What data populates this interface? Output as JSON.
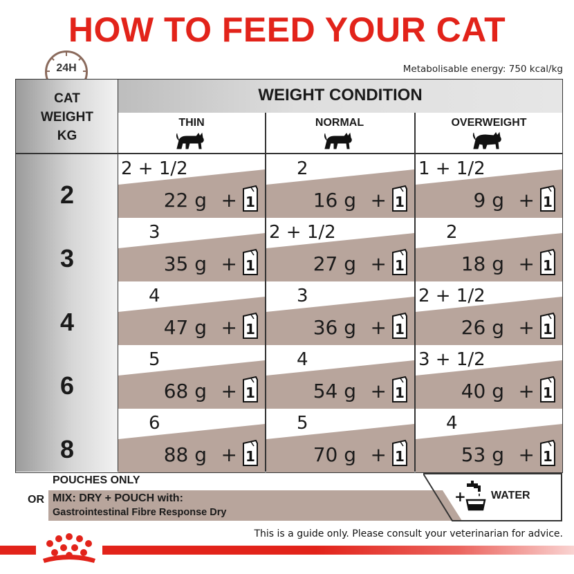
{
  "title": "HOW TO FEED YOUR CAT",
  "clock_label": "24H",
  "energy_note": "Metabolisable energy: 750 kcal/kg",
  "weight_header": [
    "CAT",
    "WEIGHT",
    "KG"
  ],
  "condition_header": "WEIGHT CONDITION",
  "columns": [
    "THIN",
    "NORMAL",
    "OVERWEIGHT"
  ],
  "pouch_count": "1",
  "plus_sign": "+",
  "rows": [
    {
      "weight": "2",
      "cells": [
        {
          "dry": "2 + 1/2",
          "grams": "22 g"
        },
        {
          "dry": "2",
          "grams": "16 g"
        },
        {
          "dry": "1 + 1/2",
          "grams": "9 g"
        }
      ]
    },
    {
      "weight": "3",
      "cells": [
        {
          "dry": "3",
          "grams": "35 g"
        },
        {
          "dry": "2 + 1/2",
          "grams": "27 g"
        },
        {
          "dry": "2",
          "grams": "18 g"
        }
      ]
    },
    {
      "weight": "4",
      "cells": [
        {
          "dry": "4",
          "grams": "47 g"
        },
        {
          "dry": "3",
          "grams": "36 g"
        },
        {
          "dry": "2 + 1/2",
          "grams": "26 g"
        }
      ]
    },
    {
      "weight": "6",
      "cells": [
        {
          "dry": "5",
          "grams": "68 g"
        },
        {
          "dry": "4",
          "grams": "54 g"
        },
        {
          "dry": "3 + 1/2",
          "grams": "40 g"
        }
      ]
    },
    {
      "weight": "8",
      "cells": [
        {
          "dry": "6",
          "grams": "88 g"
        },
        {
          "dry": "5",
          "grams": "70 g"
        },
        {
          "dry": "4",
          "grams": "53 g"
        }
      ]
    }
  ],
  "pouches_only": "POUCHES ONLY",
  "or_label": "OR",
  "mix_line1": "MIX: DRY + POUCH with:",
  "mix_line2": "Gastrointestinal Fibre Response Dry",
  "water_label": "WATER",
  "disclaimer": "This is a guide only. Please consult your veterinarian for advice.",
  "colors": {
    "brand_red": "#e2231a",
    "band_taupe": "#b8a59c",
    "text_dark": "#1a1a1a"
  },
  "icons": [
    "clock-icon",
    "cat-icon",
    "pouch-icon",
    "water-tap-icon",
    "royal-canin-crown-logo"
  ]
}
